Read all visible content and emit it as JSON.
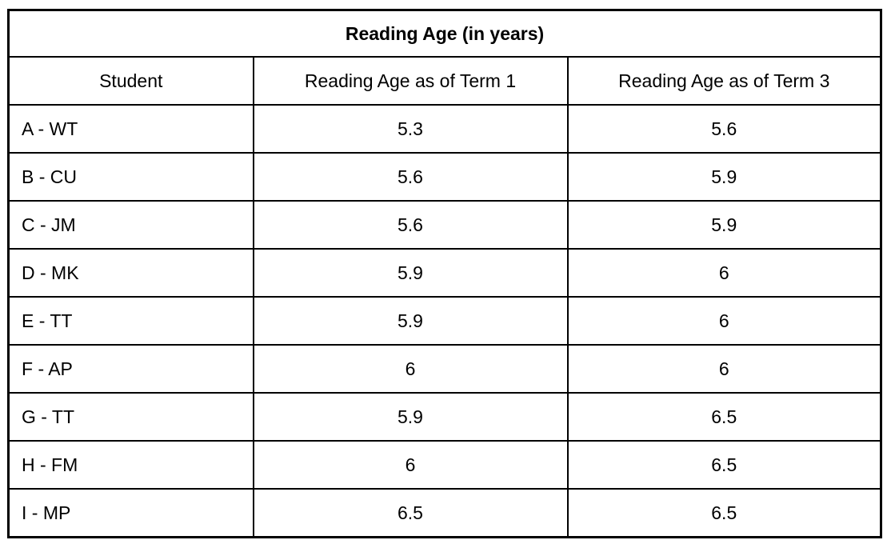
{
  "colors": {
    "background": "#ffffff",
    "border": "#000000",
    "text": "#000000"
  },
  "table": {
    "title": "Reading Age (in years)",
    "columns": {
      "student": "Student",
      "term1": "Reading Age as of Term 1",
      "term3": "Reading Age as of Term 3"
    },
    "rows": [
      {
        "student": "A - WT",
        "term1": "5.3",
        "term3": "5.6"
      },
      {
        "student": "B - CU",
        "term1": "5.6",
        "term3": "5.9"
      },
      {
        "student": "C - JM",
        "term1": "5.6",
        "term3": "5.9"
      },
      {
        "student": "D - MK",
        "term1": "5.9",
        "term3": "6"
      },
      {
        "student": "E - TT",
        "term1": "5.9",
        "term3": "6"
      },
      {
        "student": "F - AP",
        "term1": "6",
        "term3": "6"
      },
      {
        "student": "G - TT",
        "term1": "5.9",
        "term3": "6.5"
      },
      {
        "student": "H - FM",
        "term1": "6",
        "term3": "6.5"
      },
      {
        "student": "I - MP",
        "term1": "6.5",
        "term3": "6.5"
      }
    ]
  },
  "chart_data": {
    "type": "table",
    "title": "Reading Age (in years)",
    "categories": [
      "A - WT",
      "B - CU",
      "C - JM",
      "D - MK",
      "E - TT",
      "F - AP",
      "G - TT",
      "H - FM",
      "I - MP"
    ],
    "series": [
      {
        "name": "Reading Age as of Term 1",
        "values": [
          5.3,
          5.6,
          5.6,
          5.9,
          5.9,
          6,
          5.9,
          6,
          6.5
        ]
      },
      {
        "name": "Reading Age as of Term 3",
        "values": [
          5.6,
          5.9,
          5.9,
          6,
          6,
          6,
          6.5,
          6.5,
          6.5
        ]
      }
    ]
  }
}
